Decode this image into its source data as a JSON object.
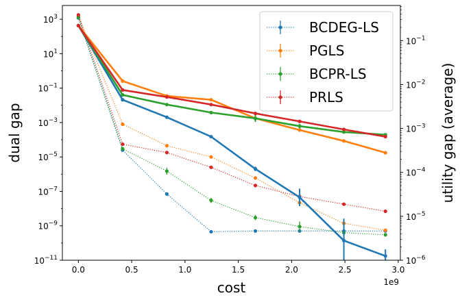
{
  "chart_data": {
    "type": "line",
    "title": "",
    "xlabel": "cost",
    "ylabel": "dual gap",
    "y2label": "utility gap (average)",
    "x_scale_label": "1e9",
    "xlim": [
      -0.15,
      3.02
    ],
    "ylim_log10": [
      -11,
      3.8
    ],
    "y2lim_log10": [
      -6,
      -0.2
    ],
    "x_ticks": [
      0.0,
      0.5,
      1.0,
      1.5,
      2.0,
      2.5,
      3.0
    ],
    "x_tick_labels": [
      "0.0",
      "0.5",
      "1.0",
      "1.5",
      "2.0",
      "2.5",
      "3.0"
    ],
    "y_ticks": [
      {
        "base": "10",
        "exp": "3"
      },
      {
        "base": "10",
        "exp": "1"
      },
      {
        "base": "10",
        "exp": "−1"
      },
      {
        "base": "10",
        "exp": "−3"
      },
      {
        "base": "10",
        "exp": "−5"
      },
      {
        "base": "10",
        "exp": "−7"
      },
      {
        "base": "10",
        "exp": "−9"
      },
      {
        "base": "10",
        "exp": "−11"
      }
    ],
    "y2_ticks": [
      {
        "base": "10",
        "exp": "−1"
      },
      {
        "base": "10",
        "exp": "−2"
      },
      {
        "base": "10",
        "exp": "−3"
      },
      {
        "base": "10",
        "exp": "−4"
      },
      {
        "base": "10",
        "exp": "−5"
      },
      {
        "base": "10",
        "exp": "−6"
      }
    ],
    "legend_position": "top-right",
    "x": [
      0.0,
      0.415,
      0.83,
      1.245,
      1.66,
      2.075,
      2.49,
      2.88
    ],
    "series": [
      {
        "name": "BCDEG-LS",
        "color": "#1f77b4",
        "dual_gap": [
          1200.0,
          2.5e-05,
          7e-08,
          4.5e-10,
          5e-10,
          5e-10,
          5e-10,
          5e-10
        ],
        "dual_gap_err_log10": [
          0,
          0,
          0.1,
          0,
          0,
          0,
          0,
          0
        ],
        "utility_gap": [
          0.22,
          0.0045,
          0.0018,
          0.00065,
          0.00012,
          2.7e-05,
          2.8e-06,
          1.25e-06
        ],
        "utility_gap_err_log10": [
          0,
          0,
          0,
          0,
          0.05,
          0.2,
          0.5,
          0.15
        ]
      },
      {
        "name": "PGLS",
        "color": "#ff7f0e",
        "dual_gap": [
          1500.0,
          0.0008,
          4.5e-05,
          1e-05,
          6e-07,
          2.2e-08,
          1.4e-09,
          5.5e-10
        ],
        "dual_gap_err_log10": [
          0,
          0,
          0,
          0,
          0,
          0,
          0,
          0
        ],
        "utility_gap": [
          0.22,
          0.012,
          0.0055,
          0.0045,
          0.0017,
          0.00092,
          0.00052,
          0.00028
        ],
        "utility_gap_err_log10": [
          0,
          0,
          0,
          0,
          0,
          0,
          0,
          0
        ]
      },
      {
        "name": "BCPR-LS",
        "color": "#2ca02c",
        "dual_gap": [
          1300.0,
          3e-05,
          1.5e-06,
          3e-08,
          3e-09,
          9e-10,
          4e-10,
          3e-10
        ],
        "dual_gap_err_log10": [
          0,
          0,
          0.2,
          0.15,
          0.15,
          0.3,
          0,
          0
        ],
        "utility_gap": [
          0.22,
          0.0058,
          0.0035,
          0.0023,
          0.0017,
          0.00113,
          0.00083,
          0.00072
        ],
        "utility_gap_err_log10": [
          0,
          0,
          0,
          0,
          0.08,
          0.05,
          0.03,
          0
        ]
      },
      {
        "name": "PRLS",
        "color": "#d62728",
        "dual_gap": [
          1800.0,
          5.5e-05,
          1.8e-05,
          2.5e-06,
          2.2e-07,
          5e-08,
          1.8e-08,
          7e-09
        ],
        "dual_gap_err_log10": [
          0,
          0,
          0,
          0,
          0.1,
          0,
          0,
          0
        ],
        "utility_gap": [
          0.22,
          0.0075,
          0.0052,
          0.0035,
          0.0022,
          0.00145,
          0.00095,
          0.00065
        ],
        "utility_gap_err_log10": [
          0,
          0,
          0,
          0,
          0,
          0,
          0,
          0
        ]
      }
    ]
  }
}
